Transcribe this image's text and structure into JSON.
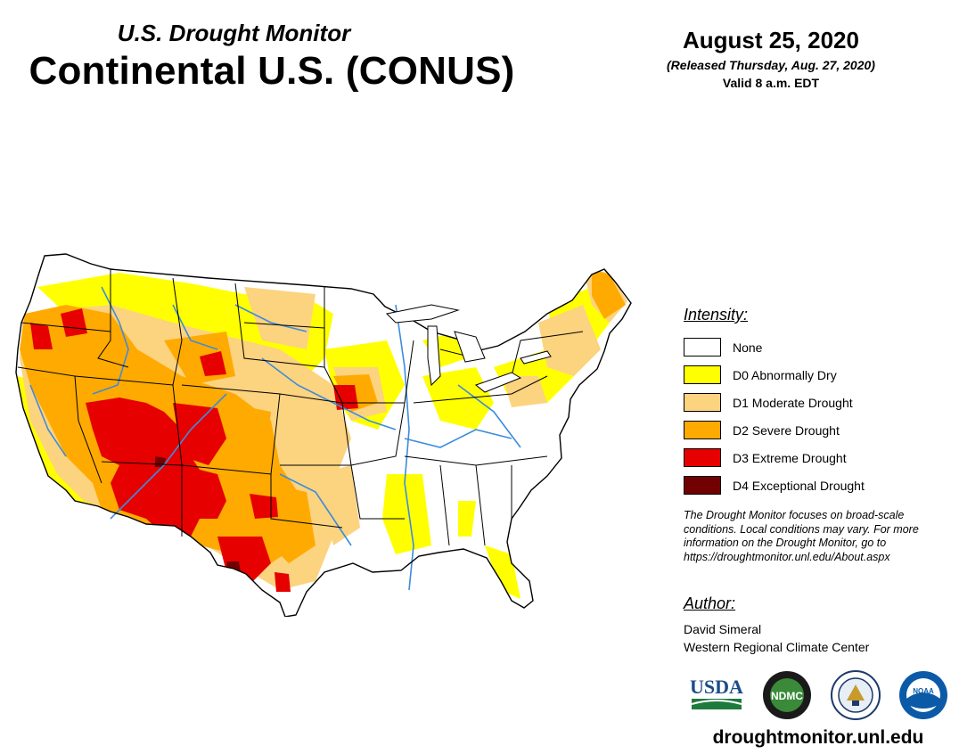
{
  "header": {
    "subtitle": "U.S. Drought Monitor",
    "title": "Continental U.S. (CONUS)",
    "date": "August 25, 2020",
    "released": "(Released Thursday, Aug. 27, 2020)",
    "valid": "Valid 8 a.m. EDT"
  },
  "legend": {
    "title": "Intensity:",
    "items": [
      {
        "label": "None",
        "color": "#ffffff"
      },
      {
        "label": "D0 Abnormally Dry",
        "color": "#ffff00"
      },
      {
        "label": "D1 Moderate Drought",
        "color": "#fcd37f"
      },
      {
        "label": "D2 Severe Drought",
        "color": "#ffaa00"
      },
      {
        "label": "D3 Extreme Drought",
        "color": "#e60000"
      },
      {
        "label": "D4 Exceptional Drought",
        "color": "#730000"
      }
    ]
  },
  "note": "The Drought Monitor focuses on broad-scale conditions. Local conditions may vary. For more information on the Drought Monitor, go to https://droughtmonitor.unl.edu/About.aspx",
  "author": {
    "title": "Author:",
    "name": "David Simeral",
    "org": "Western Regional Climate Center"
  },
  "logos": [
    {
      "name": "usda-logo",
      "text": "USDA"
    },
    {
      "name": "ndmc-logo",
      "text": "NDMC"
    },
    {
      "name": "commerce-seal-logo",
      "text": ""
    },
    {
      "name": "noaa-logo",
      "text": "NOAA"
    }
  ],
  "website": "droughtmonitor.unl.edu",
  "colors": {
    "none": "#ffffff",
    "d0": "#ffff00",
    "d1": "#fcd37f",
    "d2": "#ffaa00",
    "d3": "#e60000",
    "d4": "#730000",
    "rivers": "#3c8cdc"
  }
}
